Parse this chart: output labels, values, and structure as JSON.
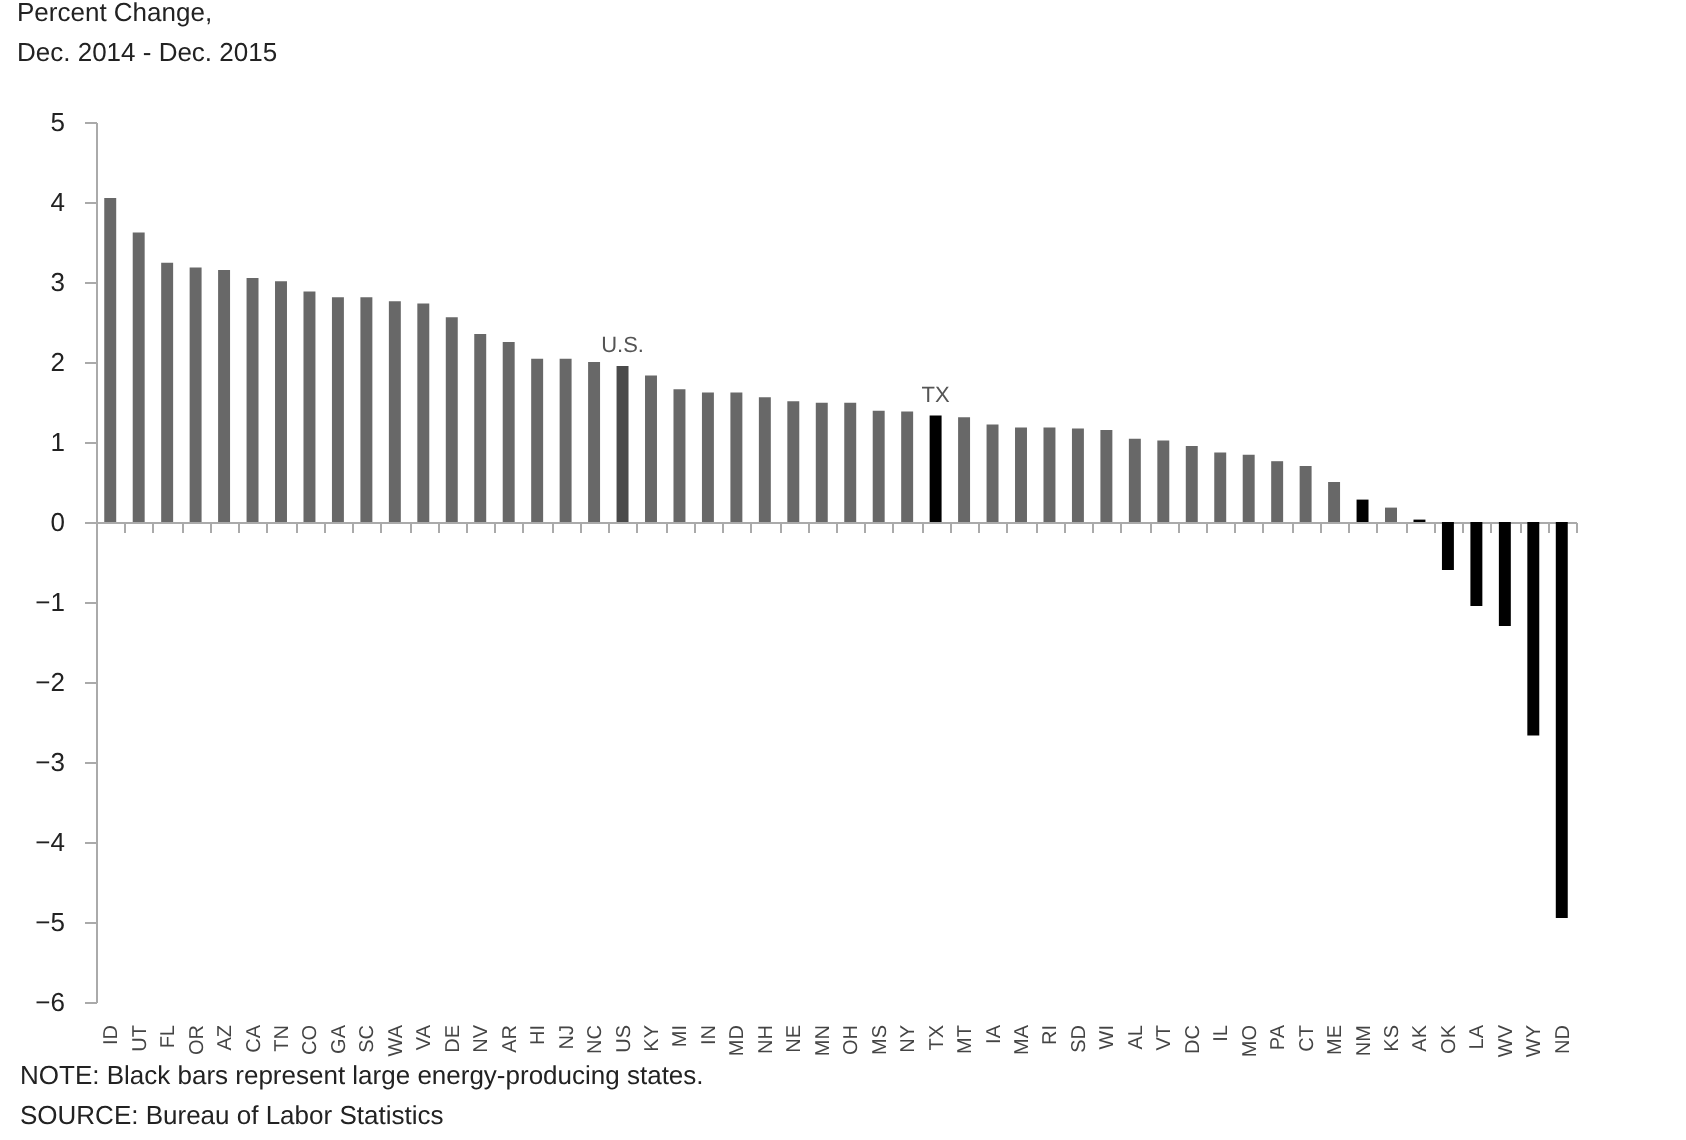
{
  "chart_data": {
    "type": "bar",
    "ylabel": "Percent Change,\nDec. 2014 - Dec. 2015",
    "categories": [
      "ID",
      "UT",
      "FL",
      "OR",
      "AZ",
      "CA",
      "TN",
      "CO",
      "GA",
      "SC",
      "WA",
      "VA",
      "DE",
      "NV",
      "AR",
      "HI",
      "NJ",
      "NC",
      "US",
      "KY",
      "MI",
      "IN",
      "MD",
      "NH",
      "NE",
      "MN",
      "OH",
      "MS",
      "NY",
      "TX",
      "MT",
      "IA",
      "MA",
      "RI",
      "SD",
      "WI",
      "AL",
      "VT",
      "DC",
      "IL",
      "MO",
      "PA",
      "CT",
      "ME",
      "NM",
      "KS",
      "AK",
      "OK",
      "LA",
      "WV",
      "WY",
      "ND"
    ],
    "values": [
      4.05,
      3.62,
      3.24,
      3.18,
      3.15,
      3.05,
      3.01,
      2.88,
      2.81,
      2.81,
      2.76,
      2.73,
      2.56,
      2.35,
      2.25,
      2.04,
      2.04,
      2.0,
      1.95,
      1.83,
      1.66,
      1.62,
      1.62,
      1.56,
      1.51,
      1.49,
      1.49,
      1.39,
      1.38,
      1.33,
      1.31,
      1.22,
      1.18,
      1.18,
      1.17,
      1.15,
      1.04,
      1.02,
      0.95,
      0.87,
      0.84,
      0.76,
      0.7,
      0.5,
      0.28,
      0.18,
      0.03,
      -0.6,
      -1.05,
      -1.3,
      -2.67,
      -4.95
    ],
    "colors": [
      "#686868",
      "#686868",
      "#686868",
      "#686868",
      "#686868",
      "#686868",
      "#686868",
      "#686868",
      "#686868",
      "#686868",
      "#686868",
      "#686868",
      "#686868",
      "#686868",
      "#686868",
      "#686868",
      "#686868",
      "#686868",
      "#4a4a4a",
      "#686868",
      "#686868",
      "#686868",
      "#686868",
      "#686868",
      "#686868",
      "#686868",
      "#686868",
      "#686868",
      "#686868",
      "#000000",
      "#686868",
      "#686868",
      "#686868",
      "#686868",
      "#686868",
      "#686868",
      "#686868",
      "#686868",
      "#686868",
      "#686868",
      "#686868",
      "#686868",
      "#686868",
      "#686868",
      "#000000",
      "#686868",
      "#000000",
      "#000000",
      "#000000",
      "#000000",
      "#000000",
      "#000000"
    ],
    "ylim": [
      -6,
      5
    ],
    "yticks": [
      -6,
      -5,
      -4,
      -3,
      -2,
      -1,
      0,
      1,
      2,
      3,
      4,
      5
    ],
    "annotations": [
      {
        "text": "U.S.",
        "x": "US",
        "y": 1.95
      },
      {
        "text": "TX",
        "x": "TX",
        "y": 1.33
      },
      "NOTE:  Black bars represent large energy-producing states.",
      "SOURCE:  Bureau of Labor Statistics"
    ]
  }
}
